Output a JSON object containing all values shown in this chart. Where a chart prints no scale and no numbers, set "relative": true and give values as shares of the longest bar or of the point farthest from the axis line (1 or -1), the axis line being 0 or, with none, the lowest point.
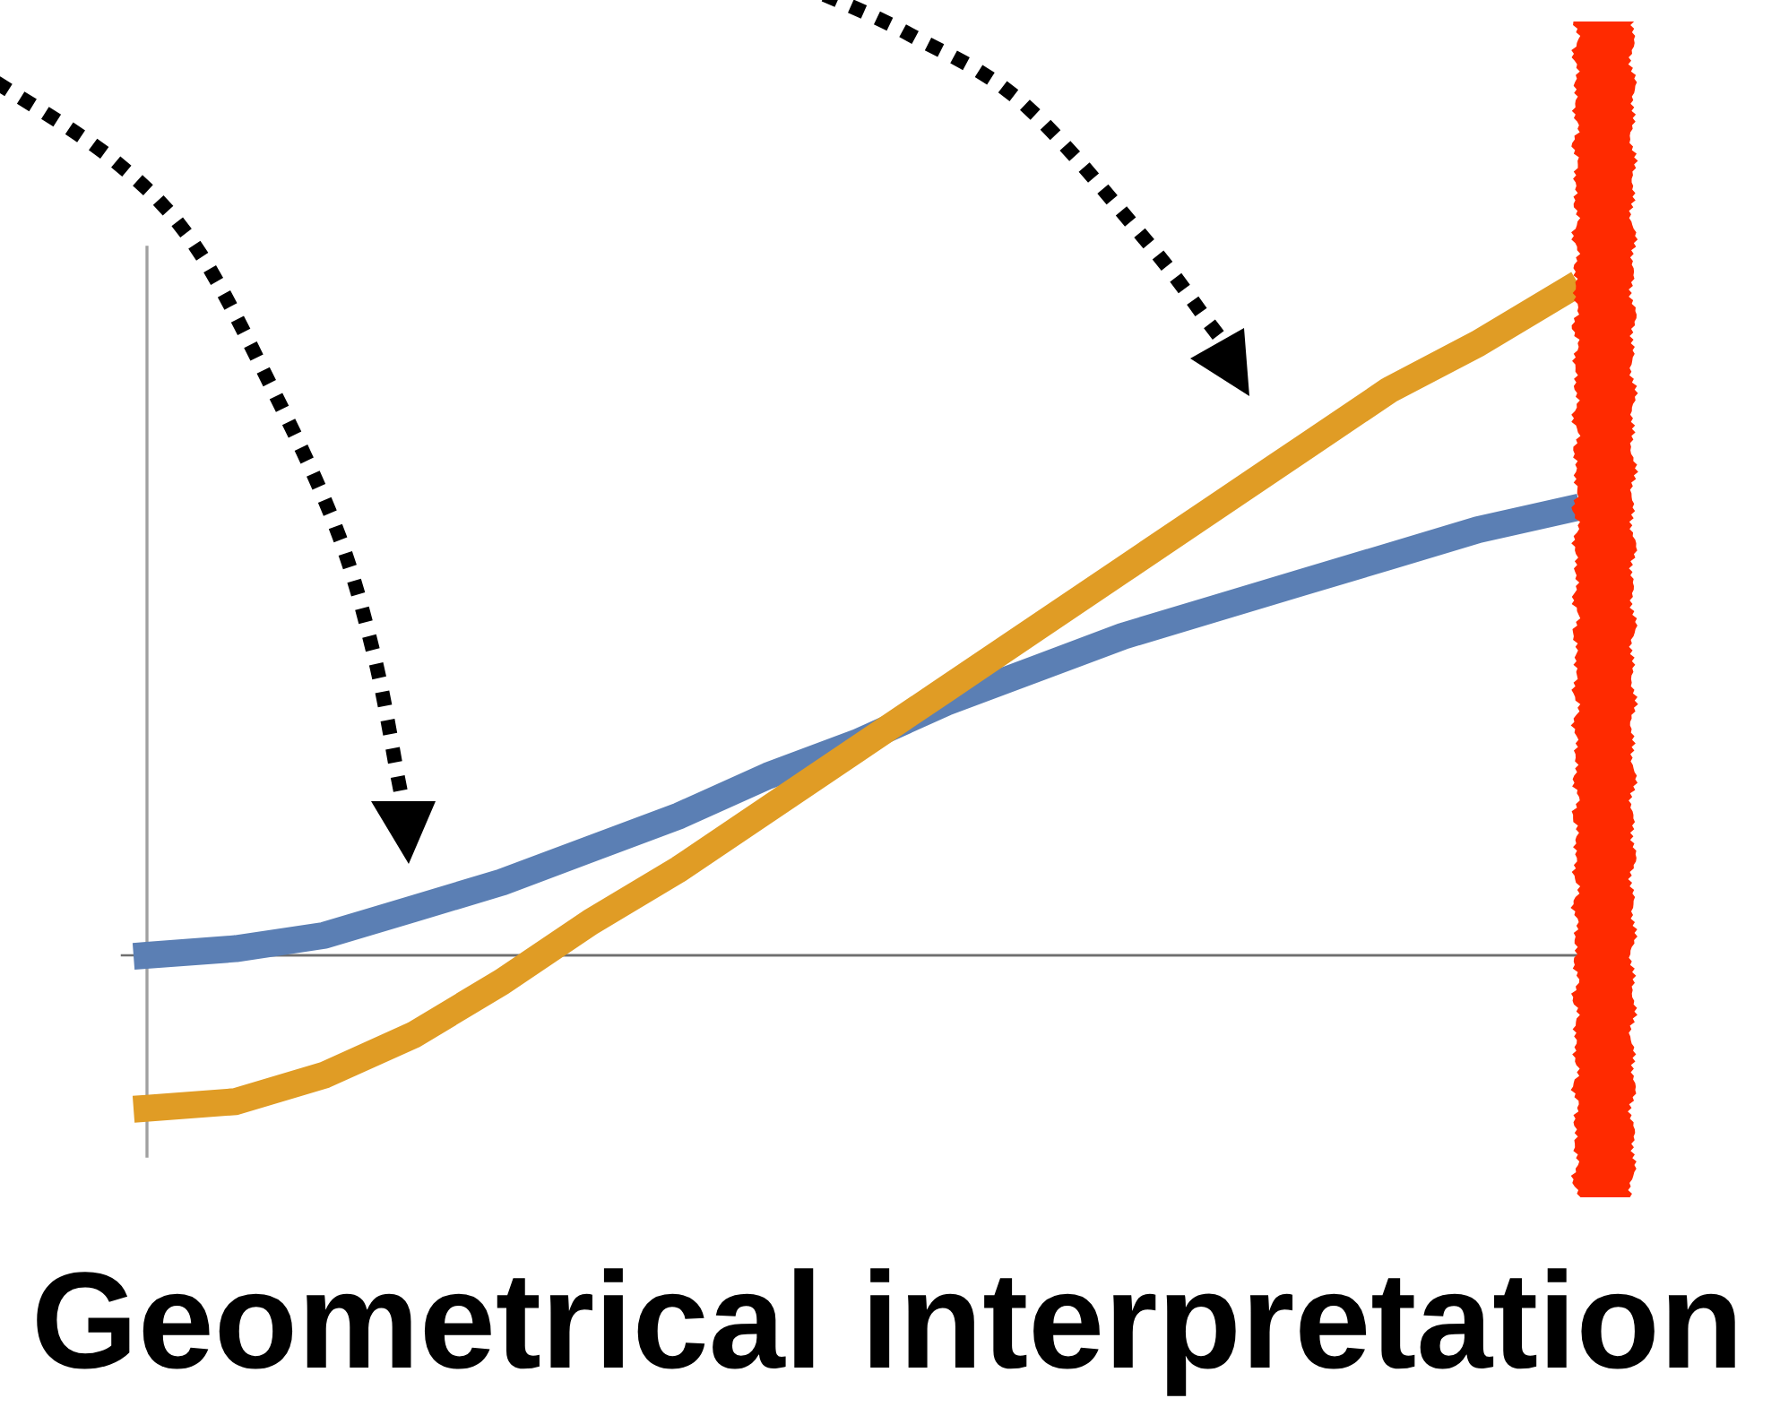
{
  "chart_data": {
    "type": "line",
    "title": "Geometrical interpretation",
    "relative": true,
    "line_style": "solid",
    "categories": [
      null,
      null,
      null,
      null,
      null,
      null,
      null,
      null,
      null,
      null,
      null,
      null,
      null,
      null,
      null,
      null,
      null
    ],
    "series": [
      {
        "color": "#5b7fb4",
        "values": [
          0,
          0.01,
          0.03,
          0.07,
          0.11,
          0.16,
          0.21,
          0.27,
          0.32,
          0.38,
          0.43,
          0.48,
          0.52,
          0.56,
          0.6,
          0.64,
          0.67
        ]
      },
      {
        "color": "#e09c25",
        "values": [
          -0.23,
          -0.22,
          -0.18,
          -0.12,
          -0.04,
          0.05,
          0.13,
          0.22,
          0.31,
          0.4,
          0.49,
          0.58,
          0.67,
          0.76,
          0.85,
          0.92,
          1
        ]
      }
    ],
    "ref_lines": [
      {
        "axis": "y",
        "value": 0,
        "color": "#6e6e6e"
      }
    ]
  }
}
